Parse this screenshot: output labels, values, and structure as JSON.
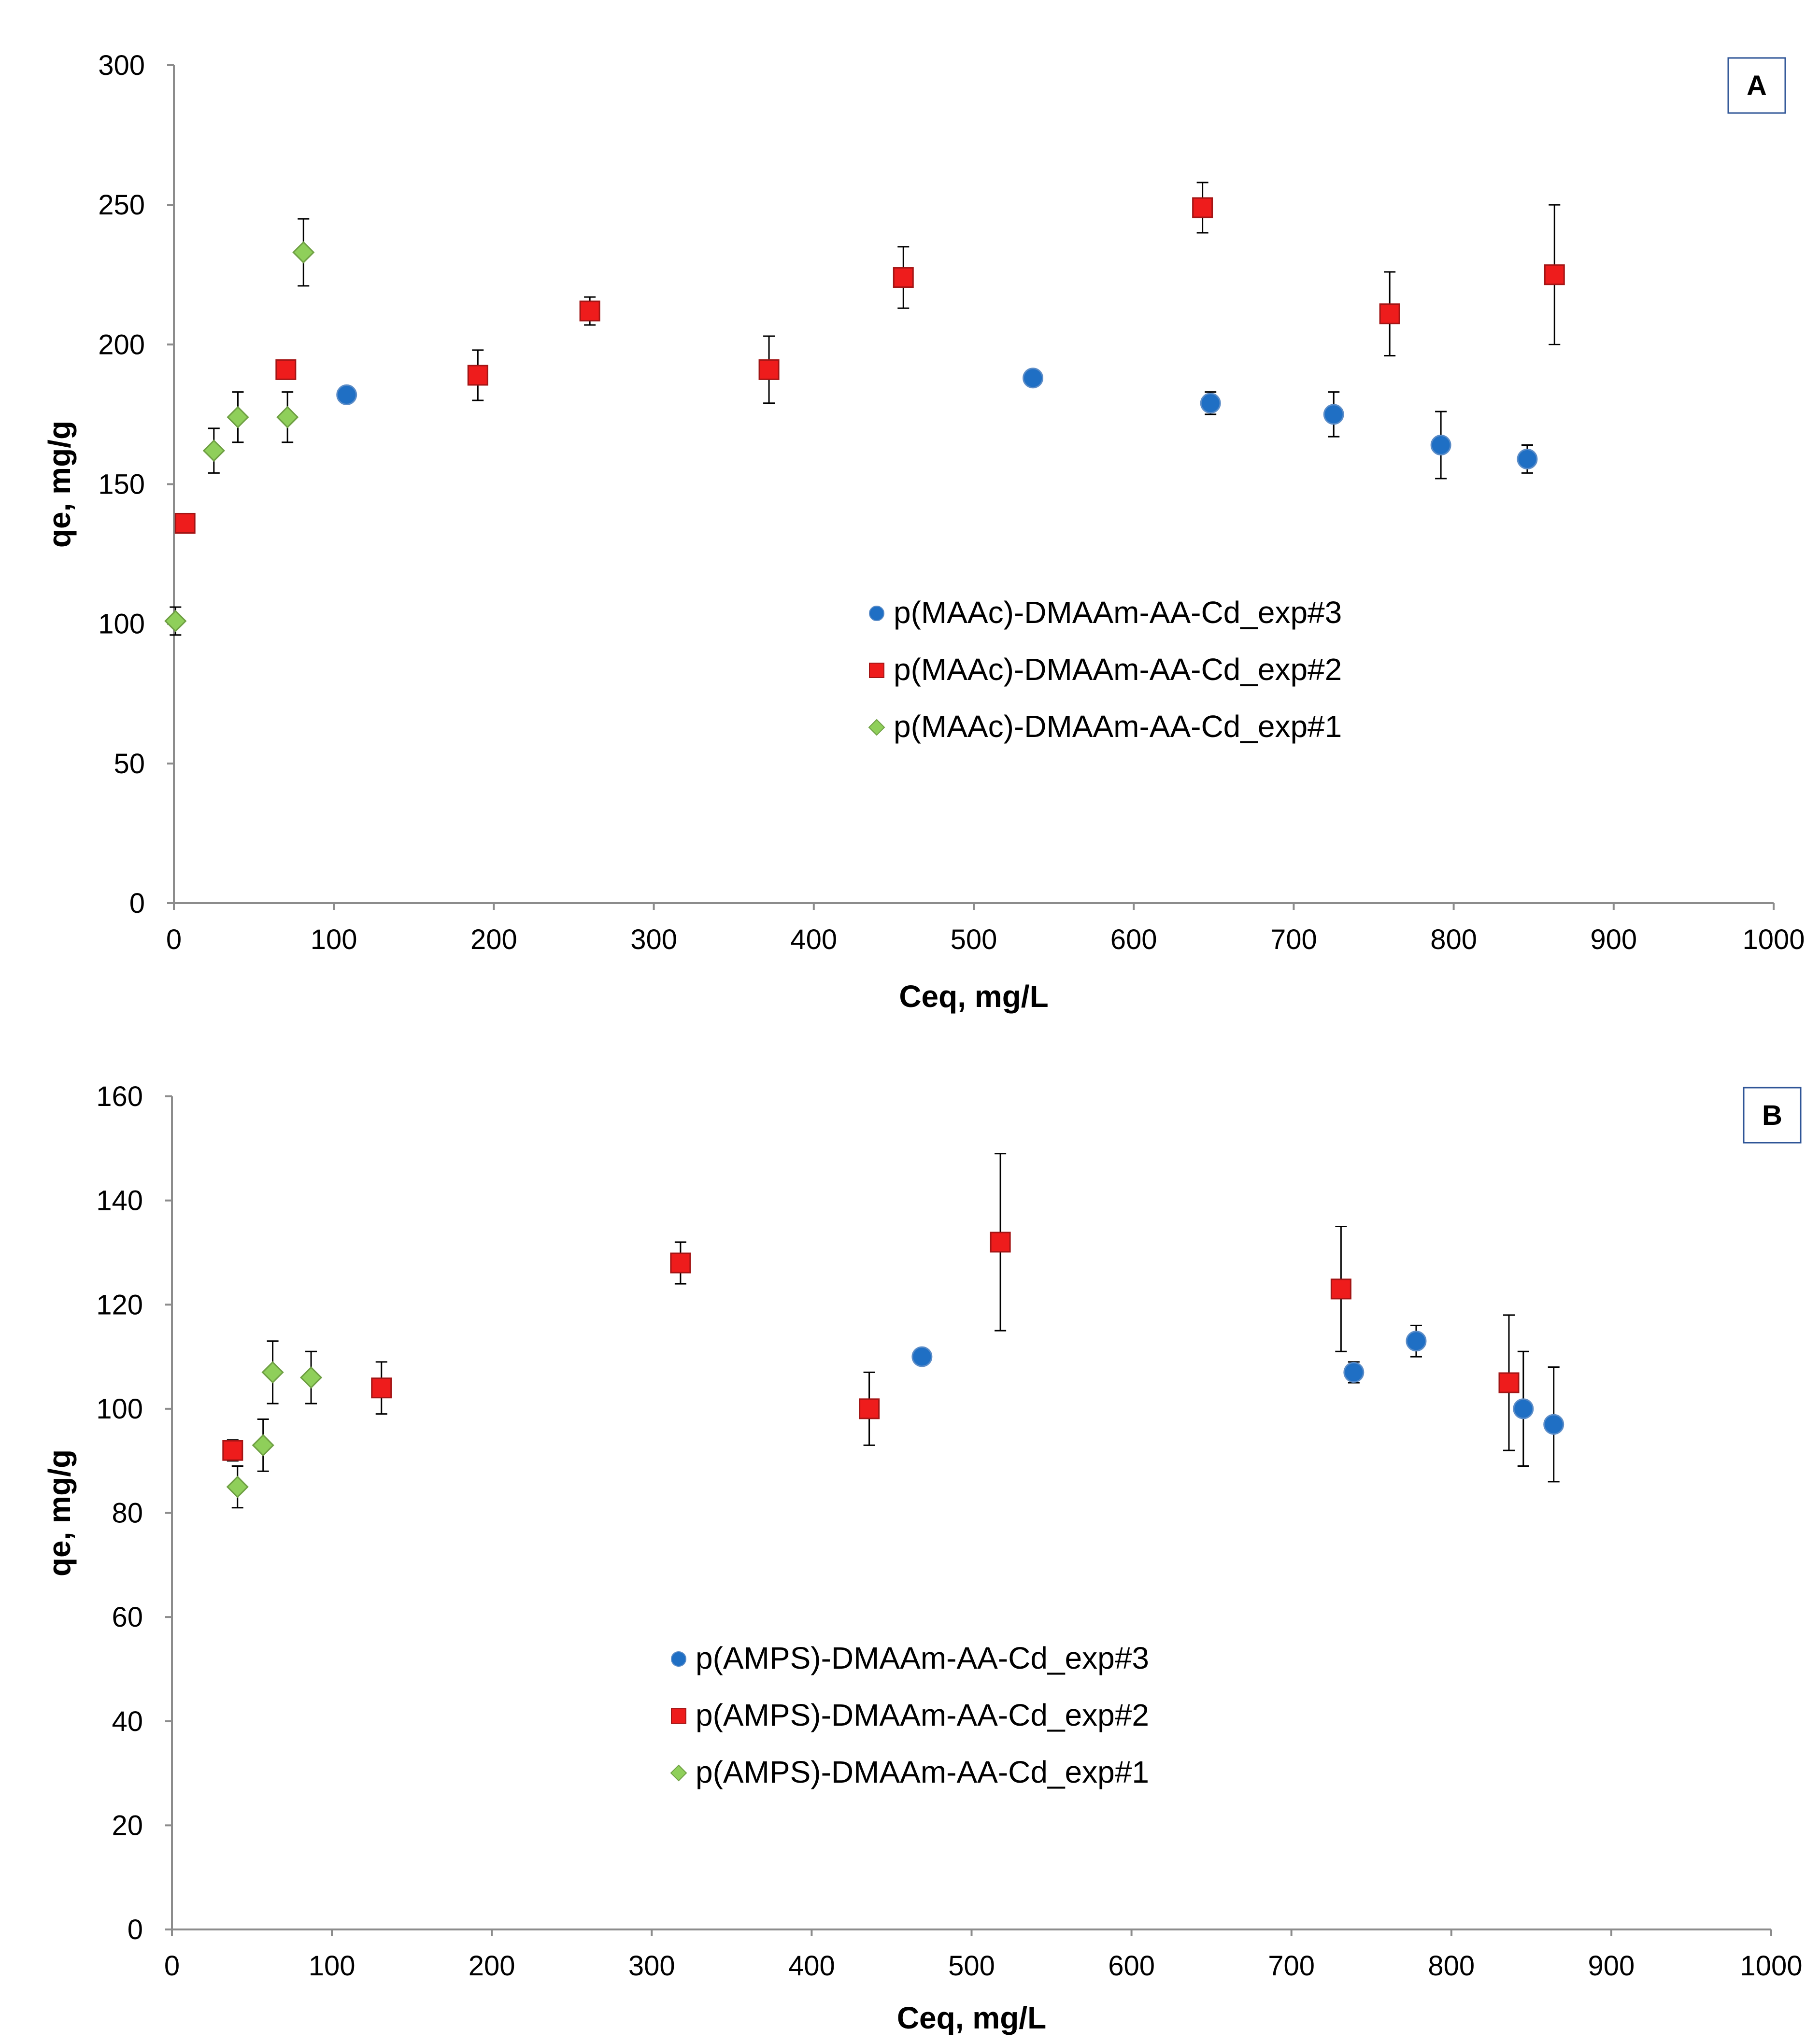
{
  "chart_data": [
    {
      "type": "scatter",
      "panel_label": "A",
      "xlabel": "Ceq, mg/L",
      "ylabel": "qe, mg/g",
      "xlim": [
        0,
        1000
      ],
      "ylim": [
        0,
        300
      ],
      "x_ticks": [
        "0",
        "100",
        "200",
        "300",
        "400",
        "500",
        "600",
        "700",
        "800",
        "900",
        "1000"
      ],
      "y_ticks": [
        "0",
        "50",
        "100",
        "150",
        "200",
        "250",
        "300"
      ],
      "grid": false,
      "legend_position": "center-right",
      "series": [
        {
          "name": "p(MAAc)-DMAAm-AA-Cd_exp#3",
          "marker": "circle",
          "color": "#1f6fc4",
          "x": [
            108,
            537,
            648,
            725,
            792,
            846
          ],
          "y": [
            182,
            188,
            179,
            175,
            164,
            159
          ],
          "err": [
            0,
            2,
            4,
            8,
            12,
            5
          ]
        },
        {
          "name": "p(MAAc)-DMAAm-AA-Cd_exp#2",
          "marker": "square",
          "color": "#ee1c1c",
          "x": [
            7,
            70,
            190,
            260,
            372,
            456,
            643,
            760,
            863
          ],
          "y": [
            136,
            191,
            189,
            212,
            191,
            224,
            249,
            211,
            225
          ],
          "err": [
            0,
            0,
            9,
            5,
            12,
            11,
            9,
            15,
            25
          ]
        },
        {
          "name": "p(MAAc)-DMAAm-AA-Cd_exp#1",
          "marker": "diamond",
          "color": "#8fcf5a",
          "x": [
            1,
            25,
            40,
            71,
            81
          ],
          "y": [
            101,
            162,
            174,
            174,
            233
          ],
          "err": [
            5,
            8,
            9,
            9,
            12
          ]
        }
      ]
    },
    {
      "type": "scatter",
      "panel_label": "B",
      "xlabel": "Ceq, mg/L",
      "ylabel": "qe, mg/g",
      "xlim": [
        0,
        1000
      ],
      "ylim": [
        0,
        160
      ],
      "x_ticks": [
        "0",
        "100",
        "200",
        "300",
        "400",
        "500",
        "600",
        "700",
        "800",
        "900",
        "1000"
      ],
      "y_ticks": [
        "0",
        "20",
        "40",
        "60",
        "80",
        "100",
        "120",
        "140",
        "160"
      ],
      "grid": false,
      "legend_position": "center",
      "series": [
        {
          "name": "p(AMPS)-DMAAm-AA-Cd_exp#3",
          "marker": "circle",
          "color": "#1f6fc4",
          "x": [
            469,
            739,
            778,
            845,
            864
          ],
          "y": [
            110,
            107,
            113,
            100,
            97
          ],
          "err": [
            0,
            2,
            3,
            11,
            11
          ]
        },
        {
          "name": "p(AMPS)-DMAAm-AA-Cd_exp#2",
          "marker": "square",
          "color": "#ee1c1c",
          "x": [
            38,
            131,
            318,
            436,
            518,
            731,
            836
          ],
          "y": [
            92,
            104,
            128,
            100,
            132,
            123,
            105
          ],
          "err": [
            2,
            5,
            4,
            7,
            17,
            12,
            13
          ]
        },
        {
          "name": "p(AMPS)-DMAAm-AA-Cd_exp#1",
          "marker": "diamond",
          "color": "#8fcf5a",
          "x": [
            41,
            57,
            63,
            87
          ],
          "y": [
            85,
            93,
            107,
            106
          ],
          "err": [
            4,
            5,
            6,
            5
          ]
        }
      ]
    }
  ]
}
